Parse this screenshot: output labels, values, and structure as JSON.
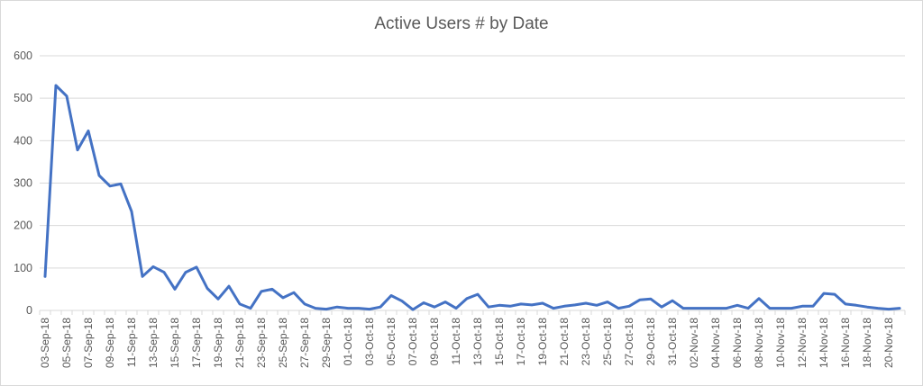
{
  "chart_data": {
    "type": "line",
    "title": "Active Users # by Date",
    "xlabel": "",
    "ylabel": "",
    "ylim": [
      0,
      600
    ],
    "yticks": [
      "0",
      "100",
      "200",
      "300",
      "400",
      "500",
      "600"
    ],
    "grid": "horizontal",
    "legend": "none",
    "line_color": "#4472c4",
    "grid_color": "#d9d9d9",
    "x_tick_labels": [
      "03-Sep-18",
      "05-Sep-18",
      "07-Sep-18",
      "09-Sep-18",
      "11-Sep-18",
      "13-Sep-18",
      "15-Sep-18",
      "17-Sep-18",
      "19-Sep-18",
      "21-Sep-18",
      "23-Sep-18",
      "25-Sep-18",
      "27-Sep-18",
      "29-Sep-18",
      "01-Oct-18",
      "03-Oct-18",
      "05-Oct-18",
      "07-Oct-18",
      "09-Oct-18",
      "11-Oct-18",
      "13-Oct-18",
      "15-Oct-18",
      "17-Oct-18",
      "19-Oct-18",
      "21-Oct-18",
      "23-Oct-18",
      "25-Oct-18",
      "27-Oct-18",
      "29-Oct-18",
      "31-Oct-18",
      "02-Nov-18",
      "04-Nov-18",
      "06-Nov-18",
      "08-Nov-18",
      "10-Nov-18",
      "12-Nov-18",
      "14-Nov-18",
      "16-Nov-18",
      "18-Nov-18",
      "20-Nov-18"
    ],
    "series": [
      {
        "values": [
          80,
          530,
          505,
          378,
          423,
          318,
          293,
          298,
          233,
          80,
          103,
          90,
          50,
          90,
          102,
          52,
          27,
          57,
          15,
          5,
          45,
          50,
          30,
          42,
          15,
          5,
          3,
          8,
          5,
          5,
          3,
          8,
          35,
          22,
          2,
          18,
          8,
          20,
          5,
          28,
          38,
          8,
          12,
          10,
          15,
          13,
          17,
          5,
          10,
          13,
          17,
          12,
          20,
          5,
          10,
          25,
          27,
          8,
          23,
          5,
          5,
          5,
          5,
          5,
          12,
          5,
          28,
          5,
          5,
          5,
          10,
          10,
          40,
          38,
          15,
          12,
          8,
          5,
          3,
          5
        ]
      }
    ]
  }
}
